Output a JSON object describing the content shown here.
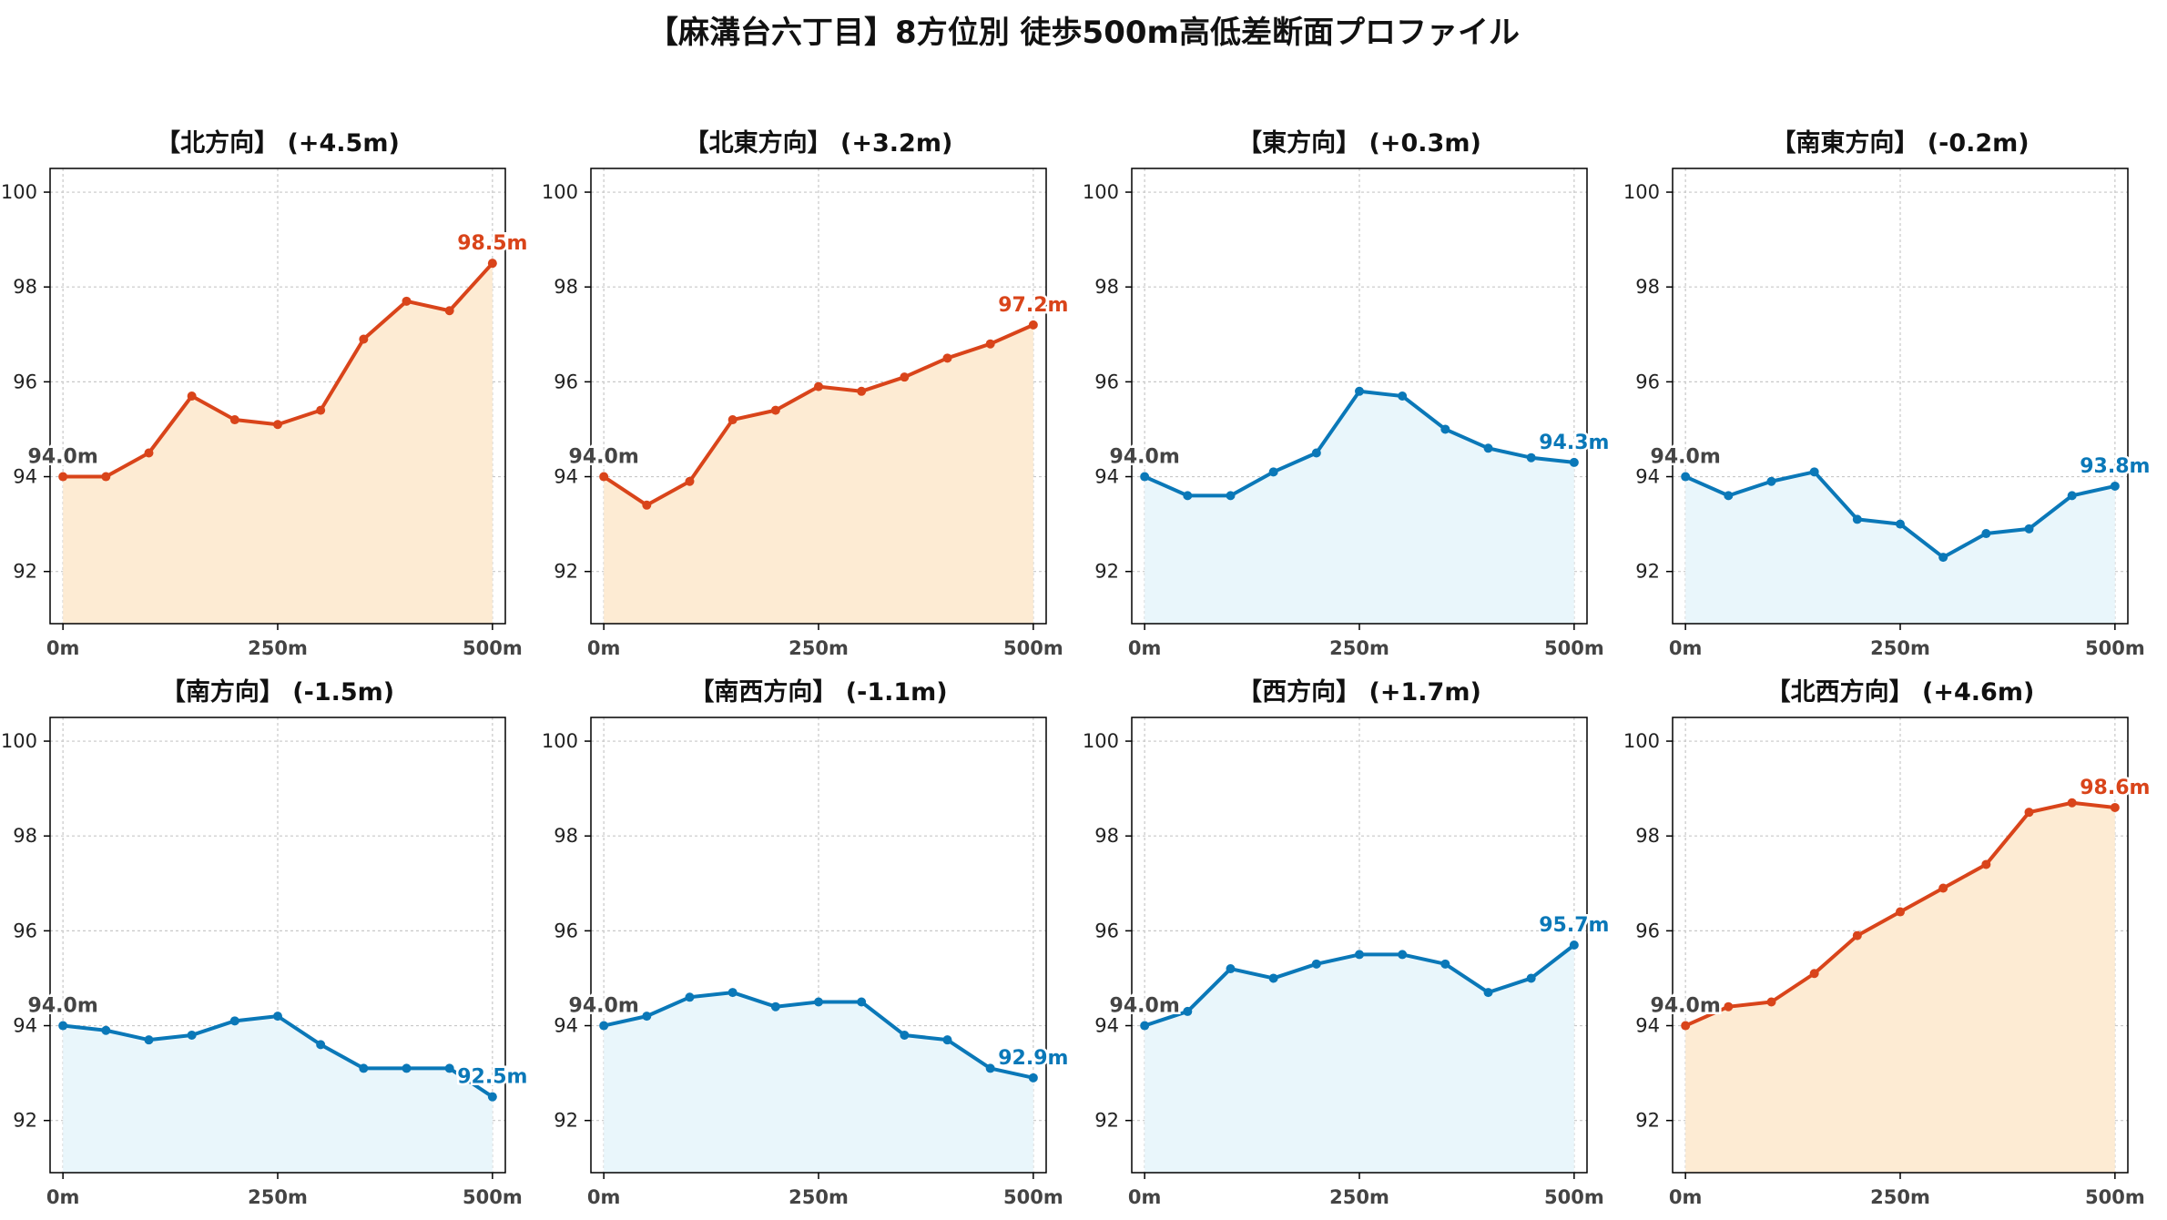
{
  "title": "【麻溝台六丁目】8方位別 徒歩500m高低差断面プロファイル",
  "colors": {
    "up_line": "#d9441a",
    "up_fill": "#fdebd3",
    "down_line": "#0a78b8",
    "down_fill": "#e9f6fb",
    "grid": "#c8c8c8",
    "axis": "#000000",
    "start_label": "#444444"
  },
  "start_label": "94.0m",
  "chart_data": [
    {
      "type": "area",
      "title": "【北方向】 (+4.5m)",
      "trend": "up",
      "x": [
        0,
        50,
        100,
        150,
        200,
        250,
        300,
        350,
        400,
        450,
        500
      ],
      "y": [
        94.0,
        94.0,
        94.5,
        95.7,
        95.2,
        95.1,
        95.4,
        96.9,
        97.7,
        97.5,
        98.5
      ],
      "end_label": "98.5m",
      "xticks": [
        "0m",
        "250m",
        "500m"
      ],
      "yticks": [
        "92",
        "94",
        "96",
        "98",
        "100"
      ],
      "xlim": [
        -15,
        515
      ],
      "ylim": [
        90.9,
        100.5
      ],
      "grid": true
    },
    {
      "type": "area",
      "title": "【北東方向】 (+3.2m)",
      "trend": "up",
      "x": [
        0,
        50,
        100,
        150,
        200,
        250,
        300,
        350,
        400,
        450,
        500
      ],
      "y": [
        94.0,
        93.4,
        93.9,
        95.2,
        95.4,
        95.9,
        95.8,
        96.1,
        96.5,
        96.8,
        97.2
      ],
      "end_label": "97.2m",
      "xticks": [
        "0m",
        "250m",
        "500m"
      ],
      "yticks": [
        "92",
        "94",
        "96",
        "98",
        "100"
      ],
      "xlim": [
        -15,
        515
      ],
      "ylim": [
        90.9,
        100.5
      ],
      "grid": true
    },
    {
      "type": "area",
      "title": "【東方向】 (+0.3m)",
      "trend": "down",
      "x": [
        0,
        50,
        100,
        150,
        200,
        250,
        300,
        350,
        400,
        450,
        500
      ],
      "y": [
        94.0,
        93.6,
        93.6,
        94.1,
        94.5,
        95.8,
        95.7,
        95.0,
        94.6,
        94.4,
        94.3
      ],
      "end_label": "94.3m",
      "xticks": [
        "0m",
        "250m",
        "500m"
      ],
      "yticks": [
        "92",
        "94",
        "96",
        "98",
        "100"
      ],
      "xlim": [
        -15,
        515
      ],
      "ylim": [
        90.9,
        100.5
      ],
      "grid": true
    },
    {
      "type": "area",
      "title": "【南東方向】 (-0.2m)",
      "trend": "down",
      "x": [
        0,
        50,
        100,
        150,
        200,
        250,
        300,
        350,
        400,
        450,
        500
      ],
      "y": [
        94.0,
        93.6,
        93.9,
        94.1,
        93.1,
        93.0,
        92.3,
        92.8,
        92.9,
        93.6,
        93.8
      ],
      "end_label": "93.8m",
      "xticks": [
        "0m",
        "250m",
        "500m"
      ],
      "yticks": [
        "92",
        "94",
        "96",
        "98",
        "100"
      ],
      "xlim": [
        -15,
        515
      ],
      "ylim": [
        90.9,
        100.5
      ],
      "grid": true
    },
    {
      "type": "area",
      "title": "【南方向】 (-1.5m)",
      "trend": "down",
      "x": [
        0,
        50,
        100,
        150,
        200,
        250,
        300,
        350,
        400,
        450,
        500
      ],
      "y": [
        94.0,
        93.9,
        93.7,
        93.8,
        94.1,
        94.2,
        93.6,
        93.1,
        93.1,
        93.1,
        92.5
      ],
      "end_label": "92.5m",
      "xticks": [
        "0m",
        "250m",
        "500m"
      ],
      "yticks": [
        "92",
        "94",
        "96",
        "98",
        "100"
      ],
      "xlim": [
        -15,
        515
      ],
      "ylim": [
        90.9,
        100.5
      ],
      "grid": true
    },
    {
      "type": "area",
      "title": "【南西方向】 (-1.1m)",
      "trend": "down",
      "x": [
        0,
        50,
        100,
        150,
        200,
        250,
        300,
        350,
        400,
        450,
        500
      ],
      "y": [
        94.0,
        94.2,
        94.6,
        94.7,
        94.4,
        94.5,
        94.5,
        93.8,
        93.7,
        93.1,
        92.9
      ],
      "end_label": "92.9m",
      "xticks": [
        "0m",
        "250m",
        "500m"
      ],
      "yticks": [
        "92",
        "94",
        "96",
        "98",
        "100"
      ],
      "xlim": [
        -15,
        515
      ],
      "ylim": [
        90.9,
        100.5
      ],
      "grid": true
    },
    {
      "type": "area",
      "title": "【西方向】 (+1.7m)",
      "trend": "down",
      "x": [
        0,
        50,
        100,
        150,
        200,
        250,
        300,
        350,
        400,
        450,
        500
      ],
      "y": [
        94.0,
        94.3,
        95.2,
        95.0,
        95.3,
        95.5,
        95.5,
        95.3,
        94.7,
        95.0,
        95.7
      ],
      "end_label": "95.7m",
      "xticks": [
        "0m",
        "250m",
        "500m"
      ],
      "yticks": [
        "92",
        "94",
        "96",
        "98",
        "100"
      ],
      "xlim": [
        -15,
        515
      ],
      "ylim": [
        90.9,
        100.5
      ],
      "grid": true
    },
    {
      "type": "area",
      "title": "【北西方向】 (+4.6m)",
      "trend": "up",
      "x": [
        0,
        50,
        100,
        150,
        200,
        250,
        300,
        350,
        400,
        450,
        500
      ],
      "y": [
        94.0,
        94.4,
        94.5,
        95.1,
        95.9,
        96.4,
        96.9,
        97.4,
        98.5,
        98.7,
        98.6
      ],
      "end_label": "98.6m",
      "xticks": [
        "0m",
        "250m",
        "500m"
      ],
      "yticks": [
        "92",
        "94",
        "96",
        "98",
        "100"
      ],
      "xlim": [
        -15,
        515
      ],
      "ylim": [
        90.9,
        100.5
      ],
      "grid": true
    }
  ]
}
